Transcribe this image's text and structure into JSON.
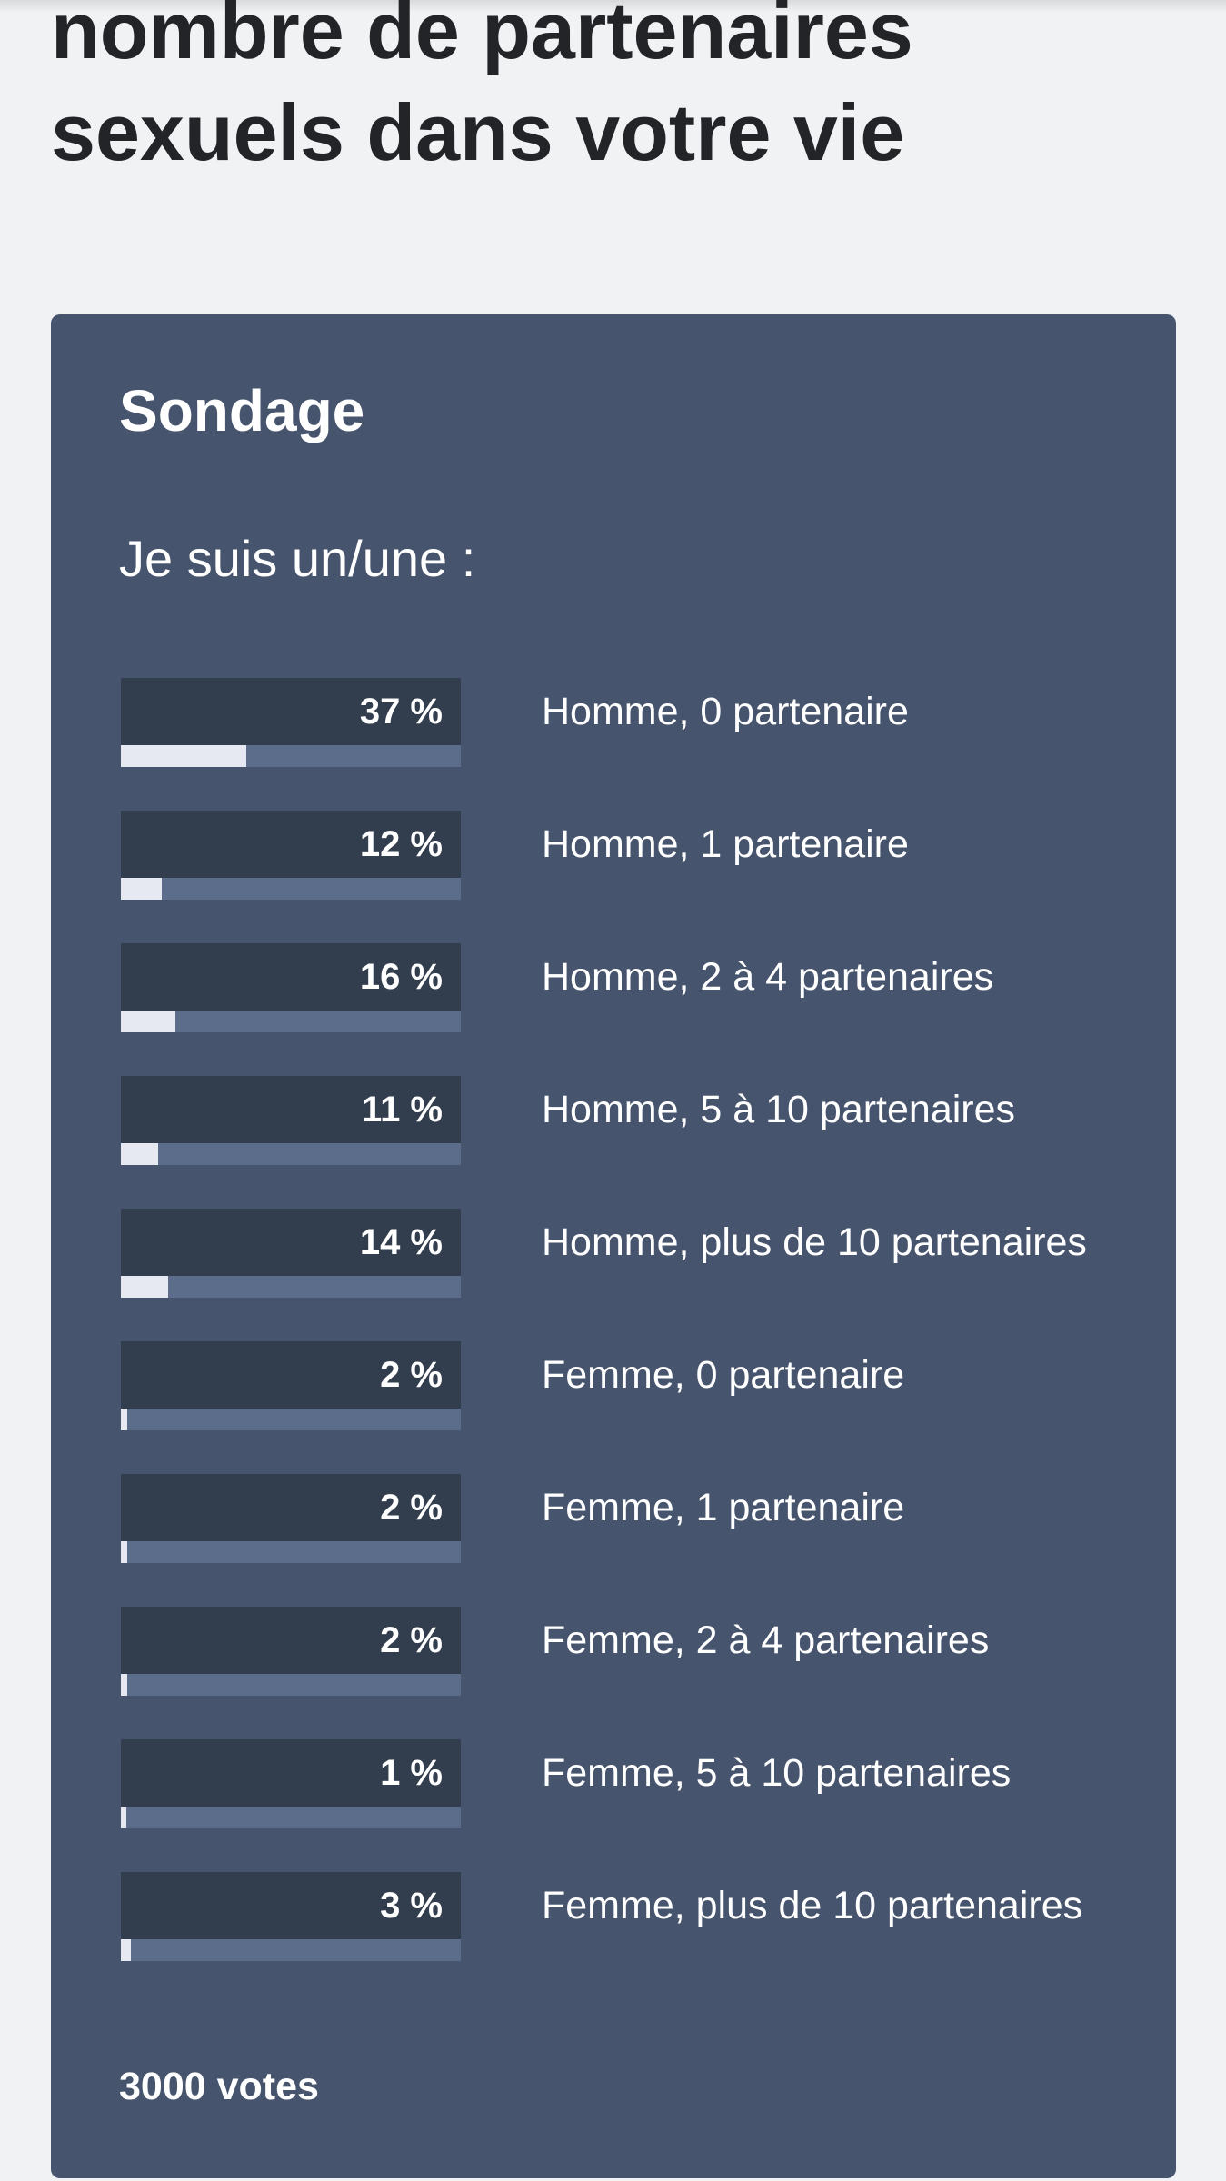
{
  "article": {
    "title": "nombre de partenaires sexuels dans votre vie"
  },
  "poll": {
    "heading": "Sondage",
    "question": "Je suis un/une :",
    "options": [
      {
        "label": "Homme, 0 partenaire",
        "percent_label": "37 %",
        "percent": 37
      },
      {
        "label": "Homme, 1 partenaire",
        "percent_label": "12 %",
        "percent": 12
      },
      {
        "label": "Homme, 2 à 4 partenaires",
        "percent_label": "16 %",
        "percent": 16
      },
      {
        "label": "Homme, 5 à 10 partenaires",
        "percent_label": "11 %",
        "percent": 11
      },
      {
        "label": "Homme, plus de 10 partenaires",
        "percent_label": "14 %",
        "percent": 14
      },
      {
        "label": "Femme, 0 partenaire",
        "percent_label": "2 %",
        "percent": 2
      },
      {
        "label": "Femme, 1 partenaire",
        "percent_label": "2 %",
        "percent": 2
      },
      {
        "label": "Femme, 2 à 4 partenaires",
        "percent_label": "2 %",
        "percent": 2
      },
      {
        "label": "Femme, 5 à 10 partenaires",
        "percent_label": "1 %",
        "percent": 1
      },
      {
        "label": "Femme, plus de 10 partenaires",
        "percent_label": "3 %",
        "percent": 3
      }
    ],
    "total_votes": "3000 votes"
  },
  "colors": {
    "page_background": "#f1f2f4",
    "card_background": "#47546d",
    "result_box": "#323d4e",
    "track": "#5c6d8c",
    "fill": "#e6e9f1",
    "title_text": "#222428"
  }
}
